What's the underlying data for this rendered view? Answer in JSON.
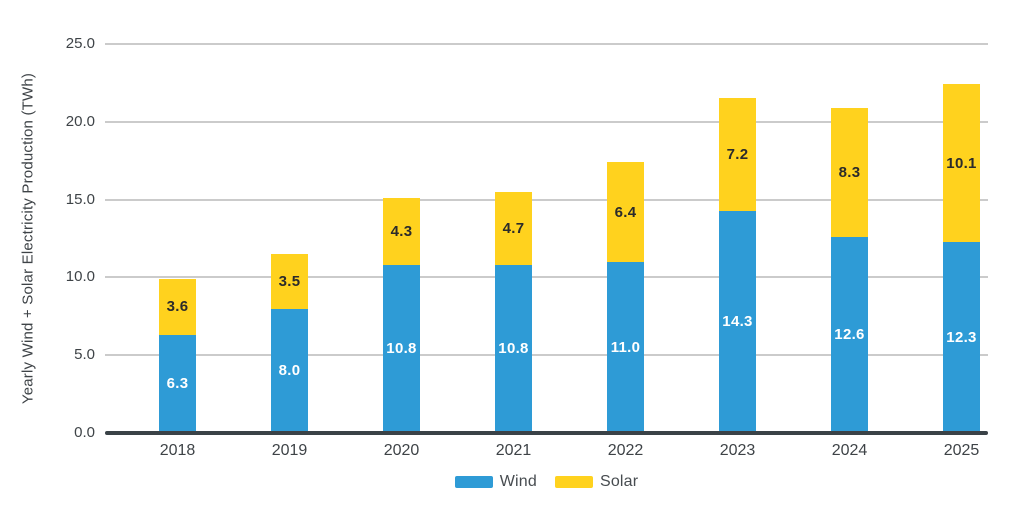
{
  "chart_data": {
    "type": "bar",
    "stacked": true,
    "title": "",
    "xlabel": "",
    "ylabel": "Yearly Wind + Solar Electricity Production (TWh)",
    "ylim": [
      0,
      25
    ],
    "ytick_labels": [
      "0.0",
      "5.0",
      "10.0",
      "15.0",
      "20.0",
      "25.0"
    ],
    "grid": true,
    "legend_position": "bottom-center",
    "categories": [
      "2018",
      "2019",
      "2020",
      "2021",
      "2022",
      "2023",
      "2024",
      "2025"
    ],
    "series": [
      {
        "name": "Wind",
        "color": "#2e9bd6",
        "label_color": "#ffffff",
        "values": [
          6.3,
          8.0,
          10.8,
          10.8,
          11.0,
          14.3,
          12.6,
          12.3
        ]
      },
      {
        "name": "Solar",
        "color": "#ffd21e",
        "label_color": "#2b2b2b",
        "values": [
          3.6,
          3.5,
          4.3,
          4.7,
          6.4,
          7.2,
          8.3,
          10.1
        ]
      }
    ],
    "value_label_format": "one_decimal"
  },
  "style": {
    "axis_color": "#3a4247",
    "grid_color": "#cbcbcb",
    "text_color": "#3e4347",
    "background": "#ffffff"
  }
}
